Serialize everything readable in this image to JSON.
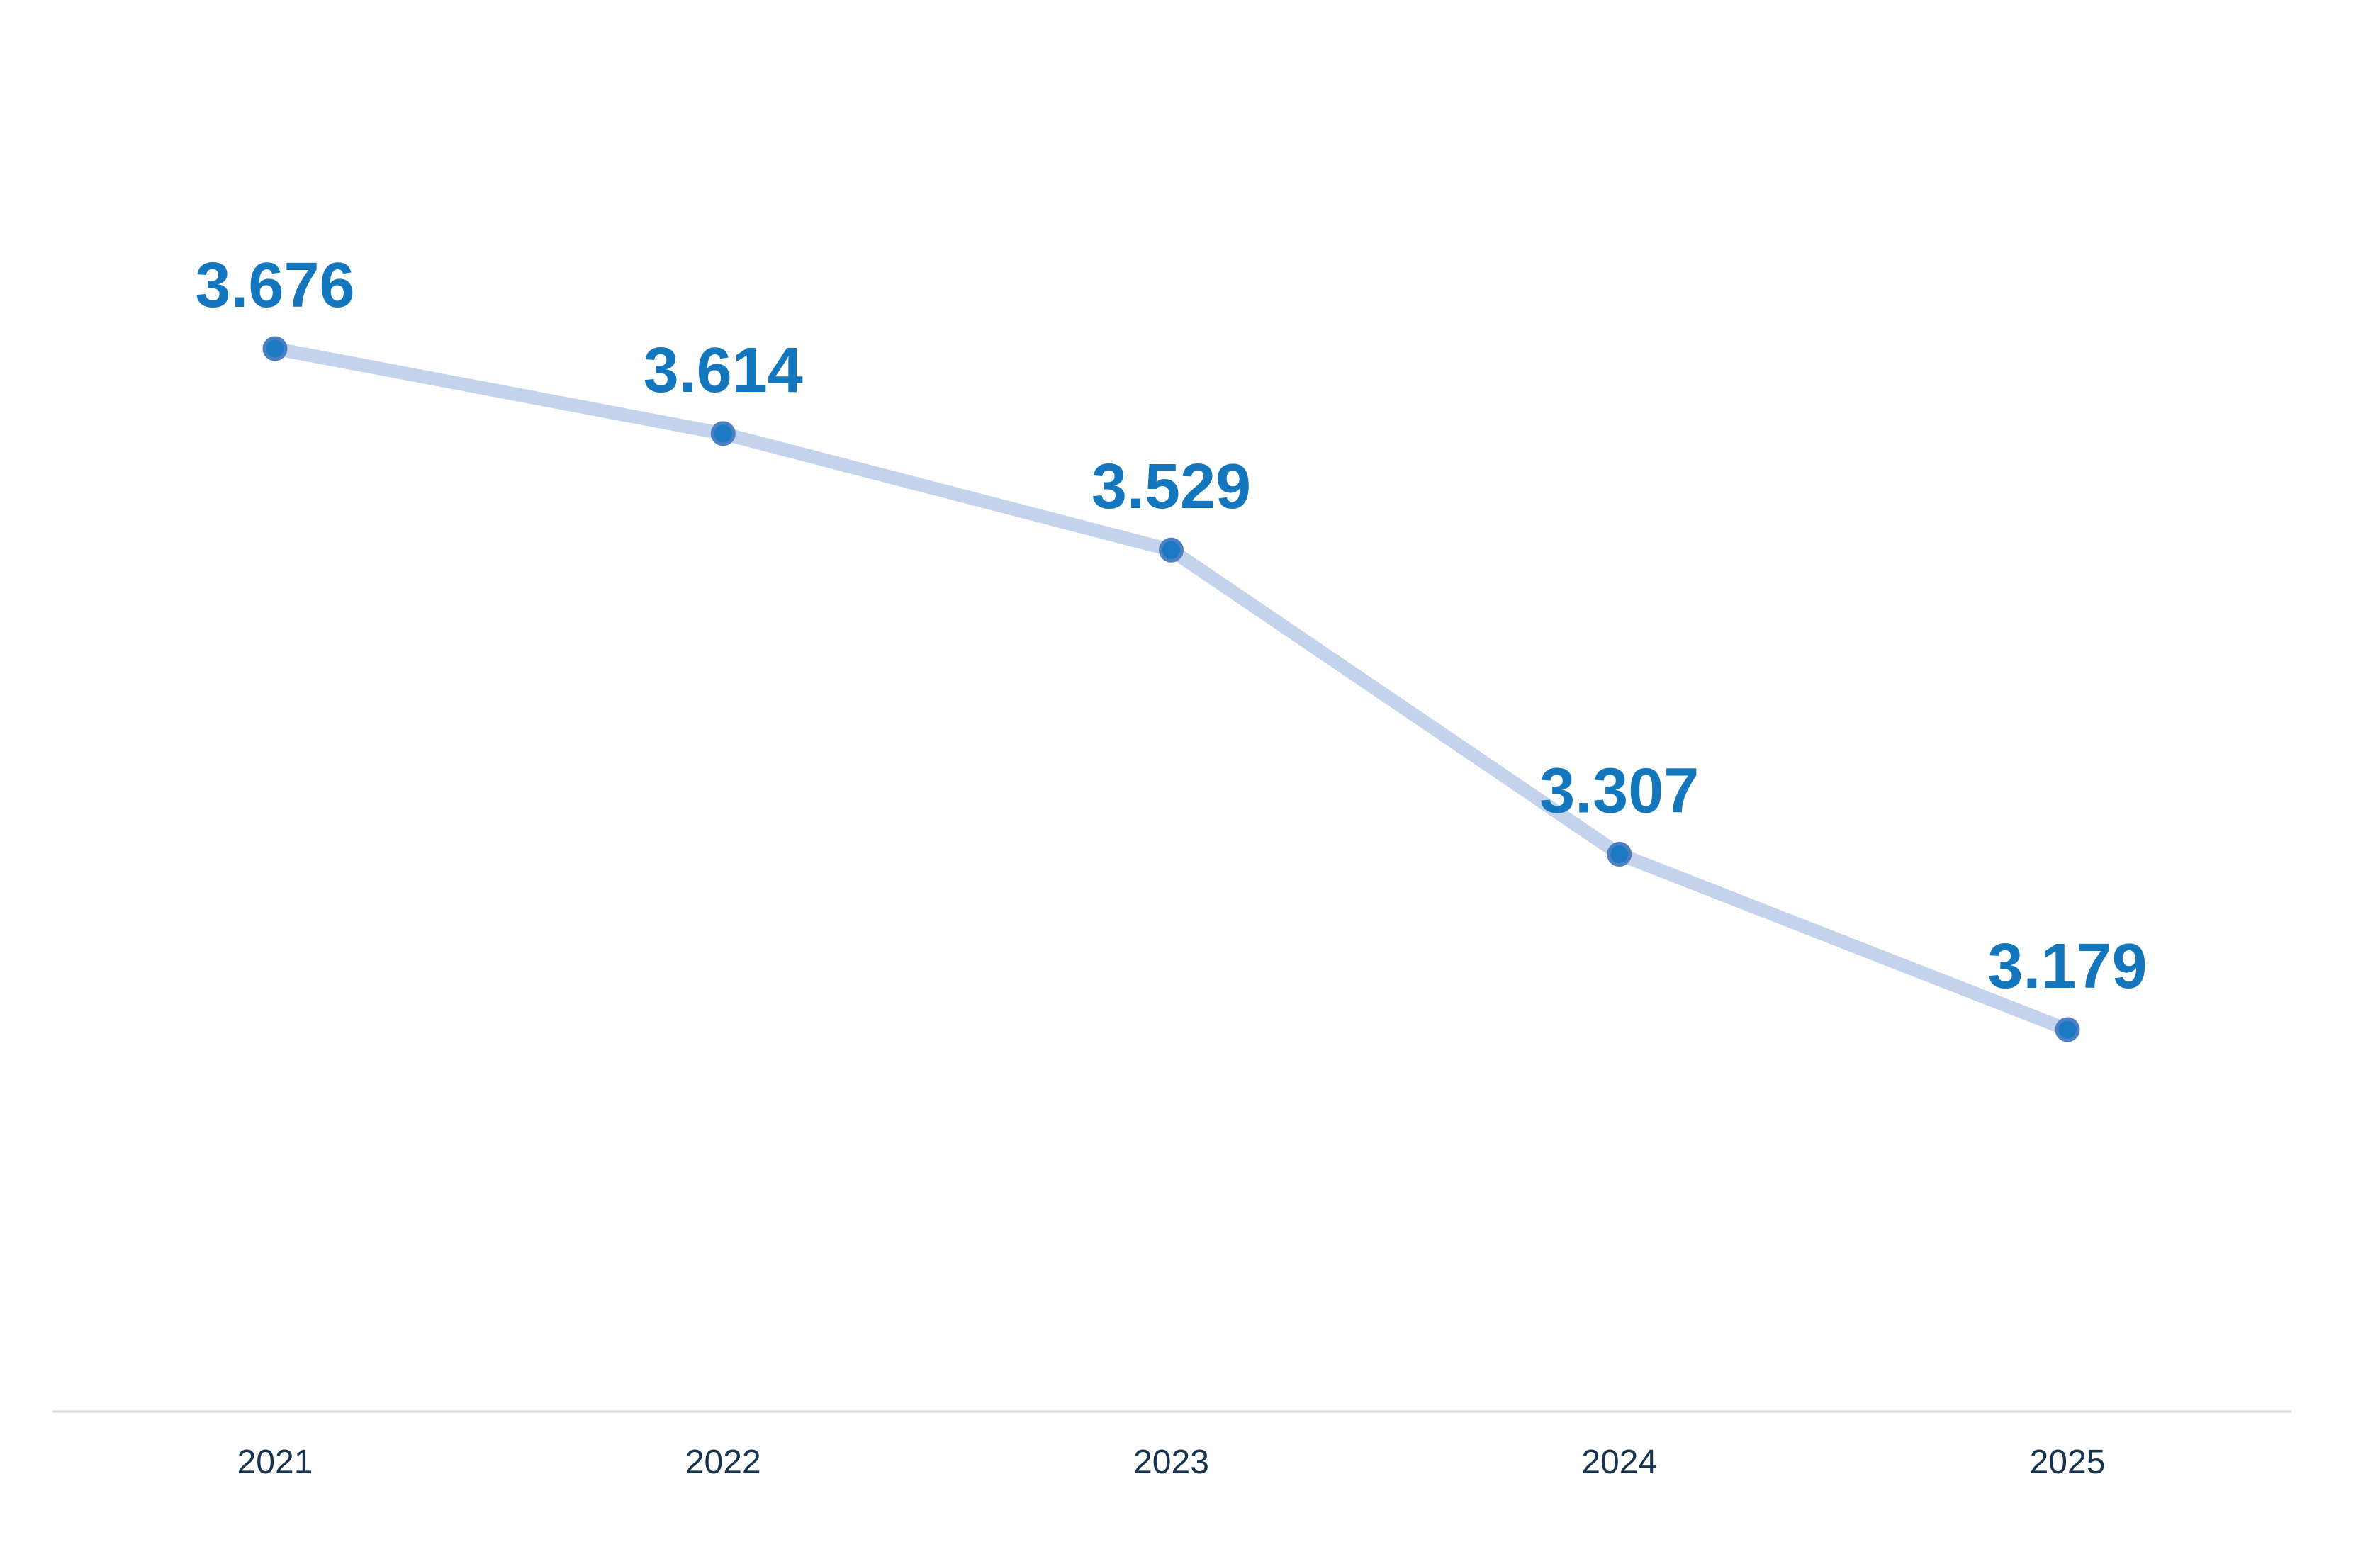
{
  "chart_data": {
    "type": "line",
    "title": "",
    "xlabel": "",
    "ylabel": "",
    "categories": [
      "2021",
      "2022",
      "2023",
      "2024",
      "2025"
    ],
    "values": [
      3.676,
      3.614,
      3.529,
      3.307,
      3.179
    ],
    "point_labels": [
      "3.676",
      "3.614",
      "3.529",
      "3.307",
      "3.179"
    ],
    "ylim": [
      3.179,
      3.676
    ],
    "grid": false,
    "legend_position": "none",
    "colors": {
      "line": "#c3d3ec",
      "marker_fill": "#1b79c2",
      "marker_ring": "#4d80c3",
      "data_label": "#1477be",
      "axis_label": "#17334d",
      "axis_line": "#d9d9d9",
      "background": "#ffffff"
    }
  }
}
